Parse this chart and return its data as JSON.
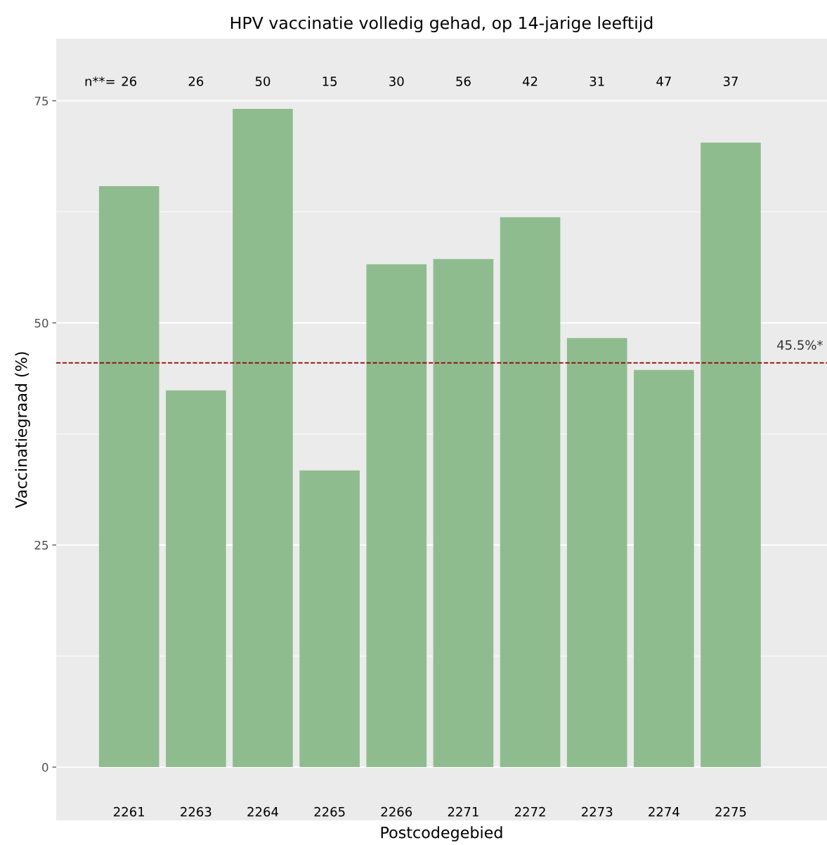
{
  "chart_data": {
    "type": "bar",
    "title": "HPV vaccinatie volledig gehad, op 14-jarige leeftijd",
    "xlabel": "Postcodegebied",
    "ylabel": "Vaccinatiegraad (%)",
    "categories": [
      "2261",
      "2263",
      "2264",
      "2265",
      "2266",
      "2271",
      "2272",
      "2273",
      "2274",
      "2275"
    ],
    "values": [
      65.4,
      42.4,
      74.1,
      33.4,
      56.6,
      57.2,
      61.9,
      48.3,
      44.7,
      70.3
    ],
    "color": "#8fbc8f",
    "ylim": [
      -6,
      82
    ],
    "yticks": [
      0,
      {
        "value": 12.5,
        "label": null
      },
      25,
      {
        "value": 37.5,
        "label": null
      },
      50,
      {
        "value": 62.5,
        "label": null
      },
      75
    ],
    "grid": "y",
    "ref_lines": [
      {
        "axis": "y",
        "value": 45.5,
        "label": "45.5%*",
        "color": "#8b0000",
        "line_style": "dashed"
      }
    ],
    "annotations": [
      "n**=",
      "26",
      "26",
      "50",
      "15",
      "30",
      "56",
      "42",
      "31",
      "47",
      "37"
    ]
  }
}
